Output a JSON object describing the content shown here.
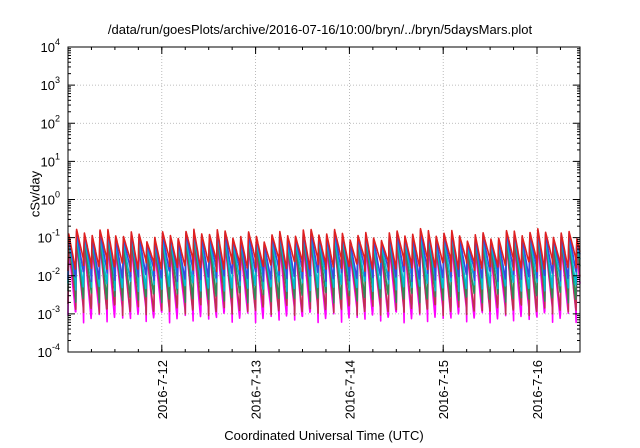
{
  "chart_data": {
    "type": "line",
    "title": "/data/run/goesPlots/archive/2016-07-16/10:00/bryn/../bryn/5daysMars.plot",
    "xlabel": "Coordinated Universal Time (UTC)",
    "ylabel": "cSv/day",
    "y_scale": "log",
    "ylim": [
      0.0001,
      10000
    ],
    "y_ticks": [
      {
        "base": "10",
        "exp": "-4",
        "value": 0.0001
      },
      {
        "base": "10",
        "exp": "-3",
        "value": 0.001
      },
      {
        "base": "10",
        "exp": "-2",
        "value": 0.01
      },
      {
        "base": "10",
        "exp": "-1",
        "value": 0.1
      },
      {
        "base": "10",
        "exp": "0",
        "value": 1
      },
      {
        "base": "10",
        "exp": "1",
        "value": 10
      },
      {
        "base": "10",
        "exp": "2",
        "value": 100
      },
      {
        "base": "10",
        "exp": "3",
        "value": 1000
      },
      {
        "base": "10",
        "exp": "4",
        "value": 10000
      }
    ],
    "xlim": [
      "2016-07-11T00:00",
      "2016-07-16T11:00"
    ],
    "x_ticks": [
      "2016-7-12",
      "2016-7-13",
      "2016-7-14",
      "2016-7-15",
      "2016-7-16"
    ],
    "grid": true,
    "legend": "none",
    "sawtooth_period_hours": 2,
    "series": [
      {
        "color": "#ff00ff",
        "peak": 0.06,
        "trough": 0.0009
      },
      {
        "color": "#c03050",
        "peak": 0.07,
        "trough": 0.0014
      },
      {
        "color": "#2e8b57",
        "peak": 0.09,
        "trough": 0.003
      },
      {
        "color": "#00bcd4",
        "peak": 0.1,
        "trough": 0.006
      },
      {
        "color": "#3a48e0",
        "peak": 0.12,
        "trough": 0.011
      },
      {
        "color": "#e02020",
        "peak": 0.13,
        "trough": 0.02
      }
    ]
  }
}
